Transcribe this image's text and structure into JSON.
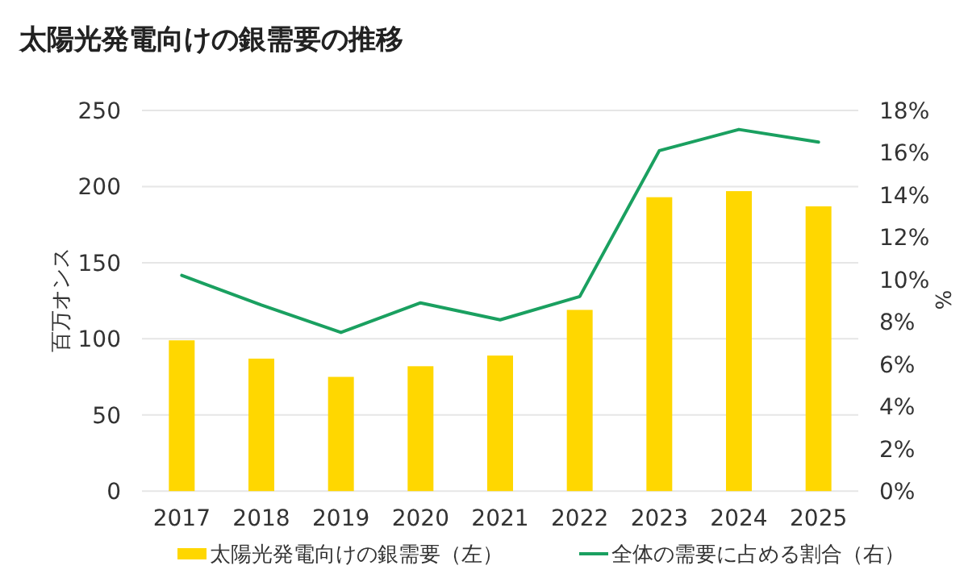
{
  "chart_data": {
    "type": "bar",
    "title": "太陽光発電向けの銀需要の推移",
    "ylabel": "百万オンス",
    "y2label": "%",
    "categories": [
      "2017",
      "2018",
      "2019",
      "2020",
      "2021",
      "2022",
      "2023",
      "2024",
      "2025"
    ],
    "series": [
      {
        "name": "太陽光発電向けの銀需要（左）",
        "color": "#ffd700",
        "values": [
          99,
          87,
          75,
          82,
          89,
          119,
          193,
          197,
          187
        ]
      },
      {
        "name": "全体の需要に占める割合（右）",
        "type": "line",
        "axis": "y2",
        "color": "#1aa060",
        "values": [
          10.2,
          8.8,
          7.5,
          8.9,
          8.1,
          9.2,
          16.1,
          17.1,
          16.5
        ]
      }
    ],
    "ylim": [
      0,
      250
    ],
    "yticks": [
      0,
      50,
      100,
      150,
      200,
      250
    ],
    "y2lim": [
      0,
      18
    ],
    "y2ticks": [
      {
        "value": 0,
        "label": "0%"
      },
      {
        "value": 2,
        "label": "2%"
      },
      {
        "value": 4,
        "label": "4%"
      },
      {
        "value": 6,
        "label": "6%"
      },
      {
        "value": 8,
        "label": "8%"
      },
      {
        "value": 10,
        "label": "10%"
      },
      {
        "value": 12,
        "label": "12%"
      },
      {
        "value": 14,
        "label": "14%"
      },
      {
        "value": 16,
        "label": "16%"
      },
      {
        "value": 18,
        "label": "18%"
      }
    ],
    "grid": "y",
    "legend": "bottom"
  }
}
